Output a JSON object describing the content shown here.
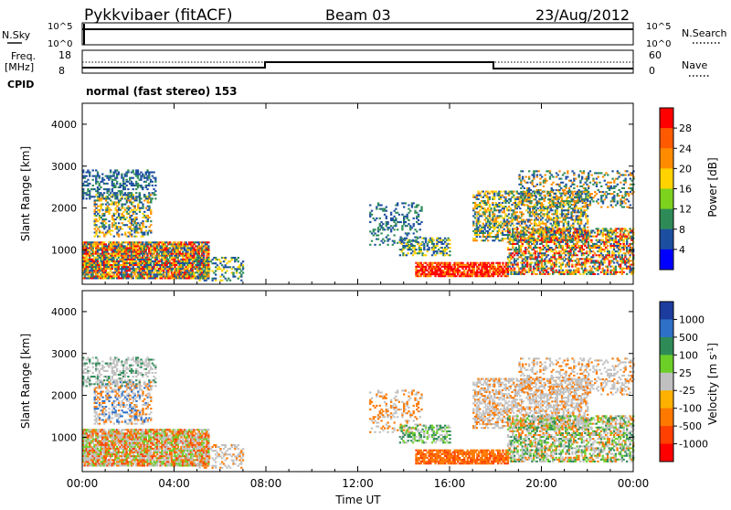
{
  "header": {
    "station": "Pykkvibaer (fitACF)",
    "beam": "Beam 03",
    "date": "23/Aug/2012"
  },
  "top_panels": {
    "nsky_label": "N.Sky",
    "nsky_ticks": [
      "10^5",
      "10^0"
    ],
    "nsearch_label": "N.Search",
    "nsearch_ticks": [
      "10^5",
      "10^0"
    ],
    "freq_label_1": "Freq.",
    "freq_label_2": "[MHz]",
    "freq_ticks": [
      "18",
      "8"
    ],
    "nave_label": "Nave",
    "nave_ticks": [
      "60",
      "0"
    ],
    "cpid_label": "CPID",
    "cpid_text": "normal (fast stereo) 153"
  },
  "chart_data": [
    {
      "type": "heatmap",
      "panel": "power",
      "ylabel": "Slant Range [km]",
      "yticks": [
        "4000",
        "3000",
        "2000",
        "1000"
      ],
      "ylim": [
        180,
        4500
      ],
      "xticks": [
        "00:00",
        "04:00",
        "08:00",
        "12:00",
        "16:00",
        "20:00",
        "00:00"
      ],
      "colorbar_label": "Power [dB]",
      "colorbar_ticks": [
        "28",
        "24",
        "20",
        "16",
        "12",
        "8",
        "4"
      ],
      "colorbar_colors": [
        "#ff0000",
        "#ff5a00",
        "#ff8c00",
        "#ffd200",
        "#7dd21e",
        "#2e8b57",
        "#1c4fa0",
        "#0000ff"
      ]
    },
    {
      "type": "heatmap",
      "panel": "velocity",
      "ylabel": "Slant Range [km]",
      "yticks": [
        "4000",
        "3000",
        "2000",
        "1000"
      ],
      "ylim": [
        180,
        4500
      ],
      "xticks": [
        "00:00",
        "04:00",
        "08:00",
        "12:00",
        "16:00",
        "20:00",
        "00:00"
      ],
      "xlabel": "Time UT",
      "colorbar_label": "Velocity [m s^-1]",
      "colorbar_ticks": [
        "1000",
        "500",
        "100",
        "25",
        "-25",
        "-100",
        "-500",
        "-1000"
      ],
      "colorbar_colors": [
        "#1c3ca0",
        "#2e6fc8",
        "#2e8b57",
        "#6ccf28",
        "#c0c0c0",
        "#ffb000",
        "#ff7800",
        "#ff4000",
        "#ff0000"
      ]
    }
  ]
}
